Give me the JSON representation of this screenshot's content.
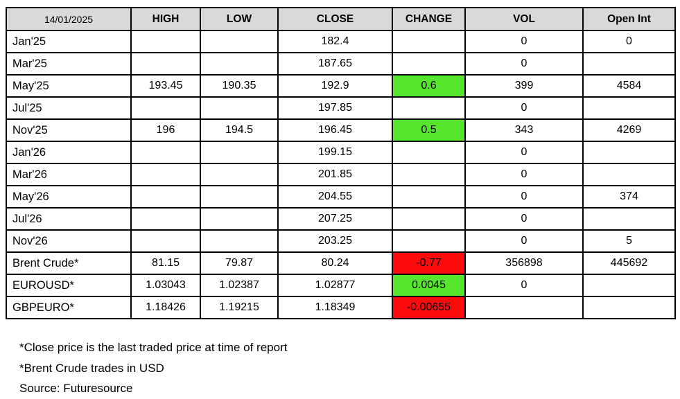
{
  "chart_data": {
    "type": "table",
    "report_date": "14/01/2025",
    "columns": [
      "HIGH",
      "LOW",
      "CLOSE",
      "CHANGE",
      "VOL",
      "Open Int"
    ],
    "rows": [
      {
        "label": "Jan'25",
        "high": "",
        "low": "",
        "close": "182.4",
        "change": "",
        "change_bg": "",
        "vol": "0",
        "open_int": "0"
      },
      {
        "label": "Mar'25",
        "high": "",
        "low": "",
        "close": "187.65",
        "change": "",
        "change_bg": "",
        "vol": "0",
        "open_int": ""
      },
      {
        "label": "May'25",
        "high": "193.45",
        "low": "190.35",
        "close": "192.9",
        "change": "0.6",
        "change_bg": "green",
        "vol": "399",
        "open_int": "4584"
      },
      {
        "label": "Jul'25",
        "high": "",
        "low": "",
        "close": "197.85",
        "change": "",
        "change_bg": "",
        "vol": "0",
        "open_int": ""
      },
      {
        "label": "Nov'25",
        "high": "196",
        "low": "194.5",
        "close": "196.45",
        "change": "0.5",
        "change_bg": "green",
        "vol": "343",
        "open_int": "4269"
      },
      {
        "label": "Jan'26",
        "high": "",
        "low": "",
        "close": "199.15",
        "change": "",
        "change_bg": "",
        "vol": "0",
        "open_int": ""
      },
      {
        "label": "Mar'26",
        "high": "",
        "low": "",
        "close": "201.85",
        "change": "",
        "change_bg": "",
        "vol": "0",
        "open_int": ""
      },
      {
        "label": "May'26",
        "high": "",
        "low": "",
        "close": "204.55",
        "change": "",
        "change_bg": "",
        "vol": "0",
        "open_int": "374"
      },
      {
        "label": "Jul'26",
        "high": "",
        "low": "",
        "close": "207.25",
        "change": "",
        "change_bg": "",
        "vol": "0",
        "open_int": ""
      },
      {
        "label": "Nov'26",
        "high": "",
        "low": "",
        "close": "203.25",
        "change": "",
        "change_bg": "",
        "vol": "0",
        "open_int": "5"
      },
      {
        "label": "Brent Crude*",
        "high": "81.15",
        "low": "79.87",
        "close": "80.24",
        "change": "-0.77",
        "change_bg": "red",
        "vol": "356898",
        "open_int": "445692"
      },
      {
        "label": "EUROUSD*",
        "high": "1.03043",
        "low": "1.02387",
        "close": "1.02877",
        "change": "0.0045",
        "change_bg": "green",
        "vol": "0",
        "open_int": ""
      },
      {
        "label": "GBPEURO*",
        "high": "1.18426",
        "low": "1.19215",
        "close": "1.18349",
        "change": "-0.00655",
        "change_bg": "red",
        "vol": "",
        "open_int": ""
      }
    ]
  },
  "footnotes": [
    "*Close price is the last traded price at time of report",
    "*Brent Crude trades in USD",
    "Source: Futuresource"
  ],
  "colors": {
    "positive_bg": "#55E62D",
    "negative_bg": "#FB0B0B",
    "header_bg": "#D9D9D9",
    "border": "#000000"
  }
}
